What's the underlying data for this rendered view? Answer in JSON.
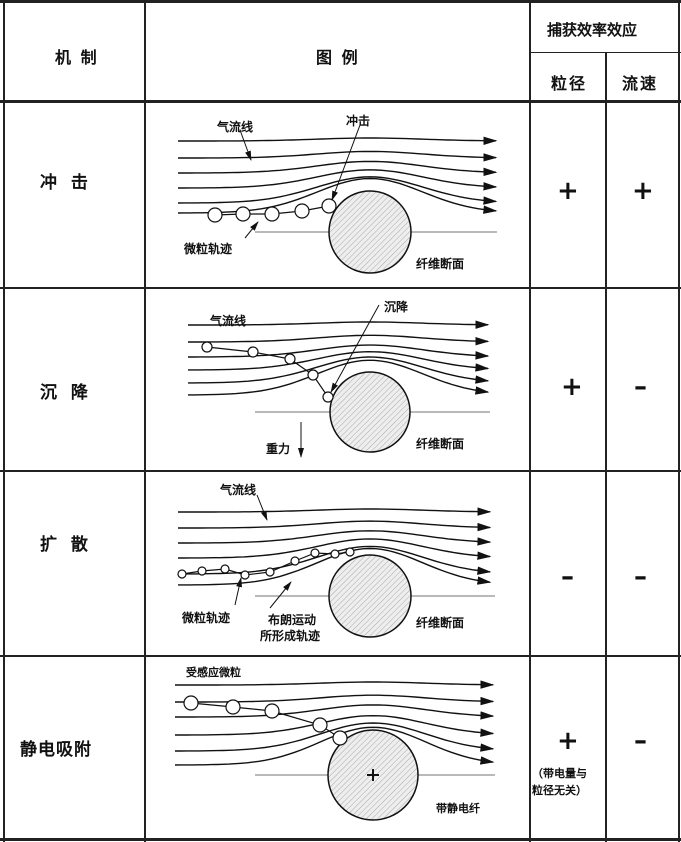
{
  "header": {
    "mechanism": "机 制",
    "illustration": "图 例",
    "effect": "捕获效率效应",
    "particle_size": "粒径",
    "flow_speed": "流速"
  },
  "rows": [
    {
      "mechanism": "冲 击",
      "labels": {
        "airflow": "气流线",
        "event": "冲击",
        "trajectory": "微粒轨迹",
        "fiber": "纤维断面"
      },
      "particle_size": "+",
      "flow_speed": "+"
    },
    {
      "mechanism": "沉 降",
      "labels": {
        "airflow": "气流线",
        "event": "沉降",
        "gravity": "重力",
        "fiber": "纤维断面"
      },
      "particle_size": "+",
      "flow_speed": "–"
    },
    {
      "mechanism": "扩 散",
      "labels": {
        "airflow": "气流线",
        "trajectory": "微粒轨迹",
        "brownian_1": "布朗运动",
        "brownian_2": "所形成轨迹",
        "fiber": "纤维断面"
      },
      "particle_size": "–",
      "flow_speed": "–"
    },
    {
      "mechanism": "静电吸附",
      "labels": {
        "particle": "受感应微粒",
        "fiber": "带静电纤"
      },
      "particle_size": "+",
      "note_1": "（带电量与",
      "note_2": "粒径无关）",
      "flow_speed": "–"
    }
  ]
}
